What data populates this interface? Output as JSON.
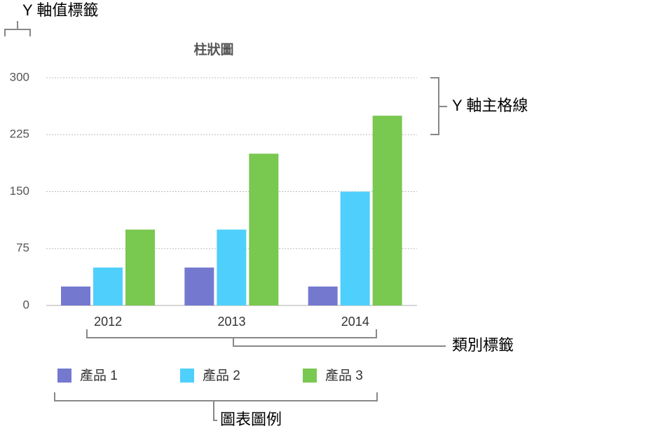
{
  "chart_data": {
    "type": "bar",
    "title": "柱狀圖",
    "categories": [
      "2012",
      "2013",
      "2014"
    ],
    "series": [
      {
        "name": "產品 1",
        "color": "#7479cf",
        "values": [
          25,
          50,
          25
        ]
      },
      {
        "name": "產品 2",
        "color": "#4fcffc",
        "values": [
          50,
          100,
          150
        ]
      },
      {
        "name": "產品 3",
        "color": "#79c850",
        "values": [
          100,
          200,
          250
        ]
      }
    ],
    "ylim": [
      0,
      300
    ],
    "yticks": [
      0,
      75,
      150,
      225,
      300
    ],
    "grid": true,
    "legend": "bottom",
    "annotations": [
      "Y 軸值標籤",
      "Y 軸主格線",
      "類別標籤",
      "圖表圖例"
    ]
  }
}
